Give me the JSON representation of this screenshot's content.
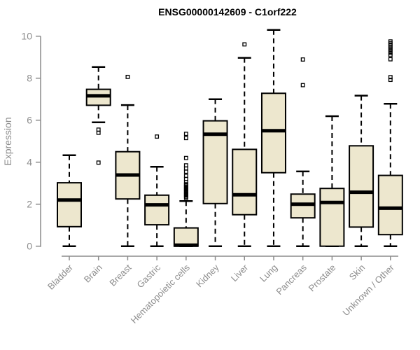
{
  "chart_data": {
    "type": "boxplot",
    "title": "ENSG00000142609 - C1orf222",
    "ylabel": "Expression",
    "xlabel": "",
    "ylim": [
      0,
      10.4
    ],
    "yticks": [
      0,
      2,
      4,
      6,
      8,
      10
    ],
    "grid": false,
    "legend": "none",
    "box_fill_color": "#ede7ce",
    "line_color": "#000000",
    "axis_color": "#8c8c8c",
    "background_color": "#ffffff",
    "categories": [
      "Bladder",
      "Brain",
      "Breast",
      "Gastric",
      "Hematopoietic cells",
      "Kidney",
      "Liver",
      "Lung",
      "Pancreas",
      "Prostate",
      "Skin",
      "Unknown / Other"
    ],
    "series": [
      {
        "category": "Bladder",
        "whisker_low": 0,
        "q1": 0.93,
        "median": 2.2,
        "q3": 3.02,
        "whisker_high": 4.33,
        "outliers": []
      },
      {
        "category": "Brain",
        "whisker_low": 5.9,
        "q1": 6.71,
        "median": 7.16,
        "q3": 7.47,
        "whisker_high": 8.53,
        "outliers": [
          5.55,
          5.4,
          3.98
        ]
      },
      {
        "category": "Breast",
        "whisker_low": 0,
        "q1": 2.25,
        "median": 3.39,
        "q3": 4.5,
        "whisker_high": 6.72,
        "outliers": [
          8.06
        ]
      },
      {
        "category": "Gastric",
        "whisker_low": 0,
        "q1": 1.02,
        "median": 1.97,
        "q3": 2.43,
        "whisker_high": 3.78,
        "outliers": [
          5.22
        ]
      },
      {
        "category": "Hematopoietic cells",
        "whisker_low": 0,
        "q1": 0,
        "median": 0.05,
        "q3": 0.87,
        "whisker_high": 2.15,
        "outliers": [
          5.35,
          5.15,
          4.2,
          3.85,
          3.7,
          3.55,
          3.35,
          3.2,
          3.05,
          2.95,
          2.9,
          2.84,
          2.78,
          2.72,
          2.66,
          2.6,
          2.54,
          2.48,
          2.42,
          2.36,
          2.3
        ]
      },
      {
        "category": "Kidney",
        "whisker_low": 0,
        "q1": 2.03,
        "median": 5.33,
        "q3": 5.97,
        "whisker_high": 7.0,
        "outliers": []
      },
      {
        "category": "Liver",
        "whisker_low": 0,
        "q1": 1.5,
        "median": 2.45,
        "q3": 4.61,
        "whisker_high": 8.97,
        "outliers": [
          9.61
        ]
      },
      {
        "category": "Lung",
        "whisker_low": 0,
        "q1": 3.5,
        "median": 5.5,
        "q3": 7.28,
        "whisker_high": 10.3,
        "outliers": []
      },
      {
        "category": "Pancreas",
        "whisker_low": 0,
        "q1": 1.35,
        "median": 2.0,
        "q3": 2.48,
        "whisker_high": 3.56,
        "outliers": [
          8.89,
          7.67
        ]
      },
      {
        "category": "Prostate",
        "whisker_low": 0,
        "q1": 0,
        "median": 2.08,
        "q3": 2.75,
        "whisker_high": 6.19,
        "outliers": []
      },
      {
        "category": "Skin",
        "whisker_low": 0,
        "q1": 0.91,
        "median": 2.57,
        "q3": 4.78,
        "whisker_high": 7.17,
        "outliers": []
      },
      {
        "category": "Unknown / Other",
        "whisker_low": 0,
        "q1": 0.55,
        "median": 1.81,
        "q3": 3.37,
        "whisker_high": 6.78,
        "outliers": [
          9.75,
          9.66,
          9.57,
          9.48,
          9.39,
          9.3,
          9.2,
          9.1,
          8.9,
          8.05,
          7.92
        ]
      }
    ]
  }
}
